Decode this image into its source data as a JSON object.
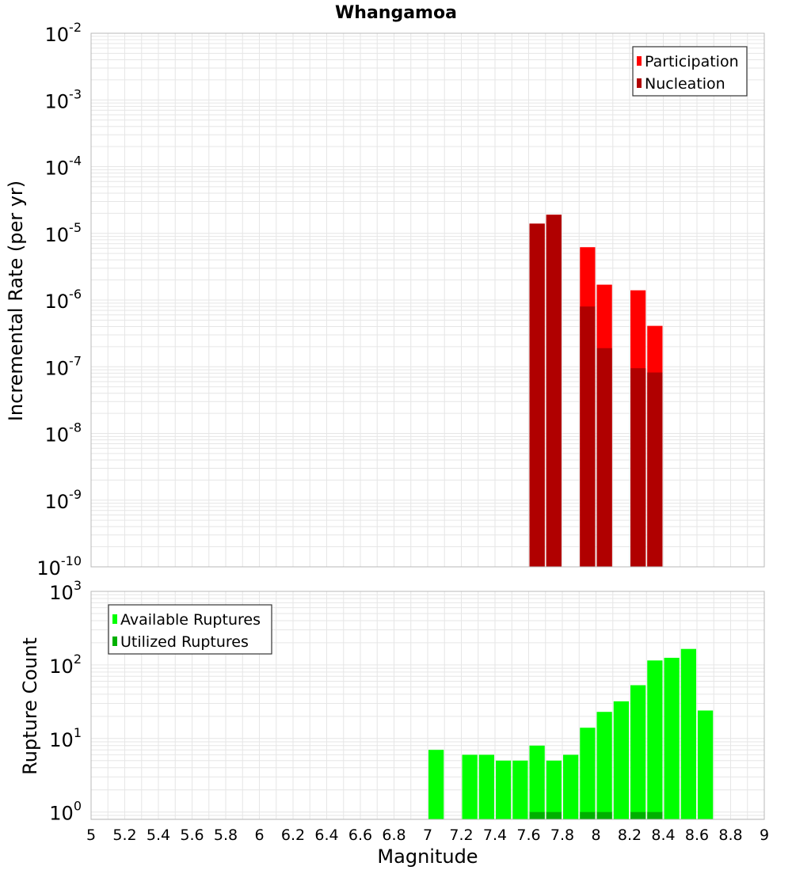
{
  "colors": {
    "participation": "#ff0000",
    "nucleation": "#b00000",
    "available": "#00ff00",
    "utilized": "#00b000",
    "grid": "#e6e6e6",
    "frame": "#b8b8b8"
  },
  "chart_data": [
    {
      "type": "bar",
      "panel": "rate",
      "title": "Whangamoa",
      "ylabel": "Incremental Rate (per yr)",
      "xlabel": "",
      "xlim": [
        5,
        9
      ],
      "yscale": "log",
      "ylim_exp": [
        -10,
        -2
      ],
      "ytick_base": "10",
      "ytick_exponents": [
        "-10",
        "-9",
        "-8",
        "-7",
        "-6",
        "-5",
        "-4",
        "-3",
        "-2"
      ],
      "bin_width": 0.1,
      "legend_position": "top-right",
      "series": [
        {
          "name": "Participation",
          "color_key": "participation",
          "points": [
            {
              "x": 7.65,
              "y": 1.4e-05
            },
            {
              "x": 7.75,
              "y": 1.9e-05
            },
            {
              "x": 7.95,
              "y": 6.2e-06
            },
            {
              "x": 8.05,
              "y": 1.7e-06
            },
            {
              "x": 8.25,
              "y": 1.4e-06
            },
            {
              "x": 8.35,
              "y": 4.1e-07
            }
          ]
        },
        {
          "name": "Nucleation",
          "color_key": "nucleation",
          "points": [
            {
              "x": 7.65,
              "y": 1.4e-05
            },
            {
              "x": 7.75,
              "y": 1.9e-05
            },
            {
              "x": 7.95,
              "y": 8e-07
            },
            {
              "x": 8.05,
              "y": 1.9e-07
            },
            {
              "x": 8.25,
              "y": 9.5e-08
            },
            {
              "x": 8.35,
              "y": 8.2e-08
            }
          ]
        }
      ]
    },
    {
      "type": "bar",
      "panel": "count",
      "ylabel": "Rupture Count",
      "xlabel": "Magnitude",
      "xlim": [
        5,
        9
      ],
      "xticks": [
        "5",
        "5.2",
        "5.4",
        "5.6",
        "5.8",
        "6",
        "6.2",
        "6.4",
        "6.6",
        "6.8",
        "7",
        "7.2",
        "7.4",
        "7.6",
        "7.8",
        "8",
        "8.2",
        "8.4",
        "8.6",
        "8.8",
        "9"
      ],
      "yscale": "log",
      "ylim_exp": [
        -0.1,
        3
      ],
      "ytick_base": "10",
      "ytick_exponents": [
        "0",
        "1",
        "2",
        "3"
      ],
      "bin_width": 0.1,
      "legend_position": "top-left",
      "series": [
        {
          "name": "Available Ruptures",
          "color_key": "available",
          "points": [
            {
              "x": 7.05,
              "y": 7
            },
            {
              "x": 7.25,
              "y": 6
            },
            {
              "x": 7.35,
              "y": 6
            },
            {
              "x": 7.45,
              "y": 5
            },
            {
              "x": 7.55,
              "y": 5
            },
            {
              "x": 7.65,
              "y": 8
            },
            {
              "x": 7.75,
              "y": 5
            },
            {
              "x": 7.85,
              "y": 6
            },
            {
              "x": 7.95,
              "y": 14
            },
            {
              "x": 8.05,
              "y": 23
            },
            {
              "x": 8.15,
              "y": 32
            },
            {
              "x": 8.25,
              "y": 53
            },
            {
              "x": 8.35,
              "y": 115
            },
            {
              "x": 8.45,
              "y": 125
            },
            {
              "x": 8.55,
              "y": 165
            },
            {
              "x": 8.65,
              "y": 24
            }
          ]
        },
        {
          "name": "Utilized Ruptures",
          "color_key": "utilized",
          "points": [
            {
              "x": 7.65,
              "y": 1
            },
            {
              "x": 7.75,
              "y": 1
            },
            {
              "x": 7.95,
              "y": 1
            },
            {
              "x": 8.05,
              "y": 1
            },
            {
              "x": 8.25,
              "y": 1
            },
            {
              "x": 8.35,
              "y": 1
            }
          ]
        }
      ]
    }
  ]
}
